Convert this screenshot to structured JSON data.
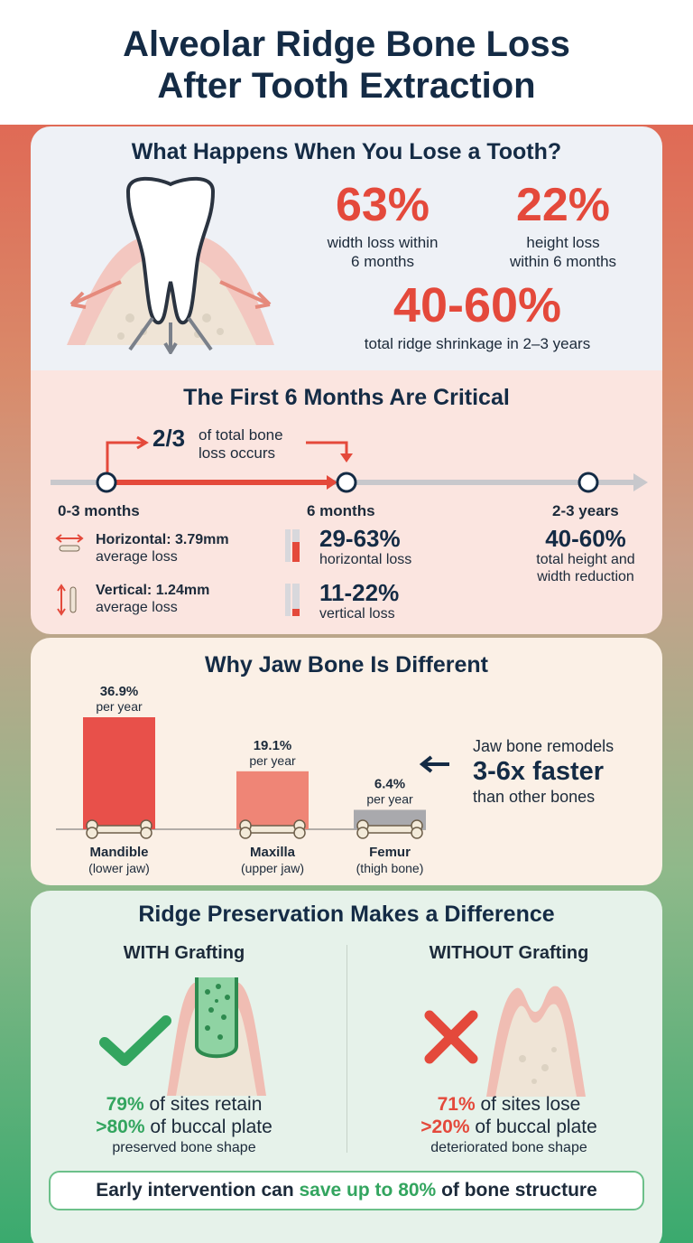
{
  "title": {
    "line1": "Alveolar Ridge Bone Loss",
    "line2": "After Tooth Extraction"
  },
  "section1": {
    "heading": "What Happens When You Lose a Tooth?",
    "stats": [
      {
        "value": "63%",
        "caption1": "width loss within",
        "caption2": "6 months"
      },
      {
        "value": "22%",
        "caption1": "height loss",
        "caption2": "within 6 months"
      },
      {
        "value": "40-60%",
        "caption1": "total ridge shrinkage in 2–3 years"
      }
    ],
    "illustration": "tooth-in-socket-icon"
  },
  "section2": {
    "heading": "The First 6 Months Are Critical",
    "callout_value": "2/3",
    "callout_text1": "of total bone",
    "callout_text2": "loss occurs",
    "milestones": [
      {
        "label": "0-3 months"
      },
      {
        "label": "6 months"
      },
      {
        "label": "2-3 years"
      }
    ],
    "early": [
      {
        "icon": "horizontal-arrow-icon",
        "title": "Horizontal: 3.79mm",
        "sub": "average loss"
      },
      {
        "icon": "vertical-arrow-icon",
        "title": "Vertical: 1.24mm",
        "sub": "average loss"
      }
    ],
    "six_months": [
      {
        "value": "29-63%",
        "sub": "horizontal loss",
        "fill": 0.6
      },
      {
        "value": "11-22%",
        "sub": "vertical loss",
        "fill": 0.22
      }
    ],
    "long_term": {
      "value": "40-60%",
      "sub1": "total height and",
      "sub2": "width reduction"
    },
    "colors": {
      "accent": "#e4493b",
      "track": "#c8c8cc"
    }
  },
  "section3": {
    "heading": "Why Jaw Bone Is Different",
    "chart_data": {
      "type": "bar",
      "categories": [
        "Mandible",
        "Maxilla",
        "Femur"
      ],
      "category_sub": [
        "(lower jaw)",
        "(upper jaw)",
        "(thigh bone)"
      ],
      "values": [
        36.9,
        19.1,
        6.4
      ],
      "value_labels": [
        "36.9%",
        "19.1%",
        "6.4%"
      ],
      "unit_label": "per year",
      "colors": [
        "#e8504a",
        "#ef8576",
        "#a9a9ad"
      ],
      "ylim": [
        0,
        36.9
      ]
    },
    "note_line1": "Jaw bone remodels",
    "note_big": "3-6x faster",
    "note_line3": "than other bones"
  },
  "section4": {
    "heading": "Ridge Preservation Makes a Difference",
    "with": {
      "title": "WITH Grafting",
      "line1_pct": "79%",
      "line1_rest": " of sites retain",
      "line2_pct": ">80%",
      "line2_rest": " of buccal plate",
      "caption": "preserved bone shape",
      "icon": "check-icon"
    },
    "without": {
      "title": "WITHOUT Grafting",
      "line1_pct": "71%",
      "line1_rest": " of sites lose",
      "line2_pct": ">20%",
      "line2_rest": " of buccal plate",
      "caption": "deteriorated bone shape",
      "icon": "x-mark-icon"
    },
    "banner_pre": "Early intervention can ",
    "banner_hl": "save up to 80%",
    "banner_post": " of bone structure"
  }
}
